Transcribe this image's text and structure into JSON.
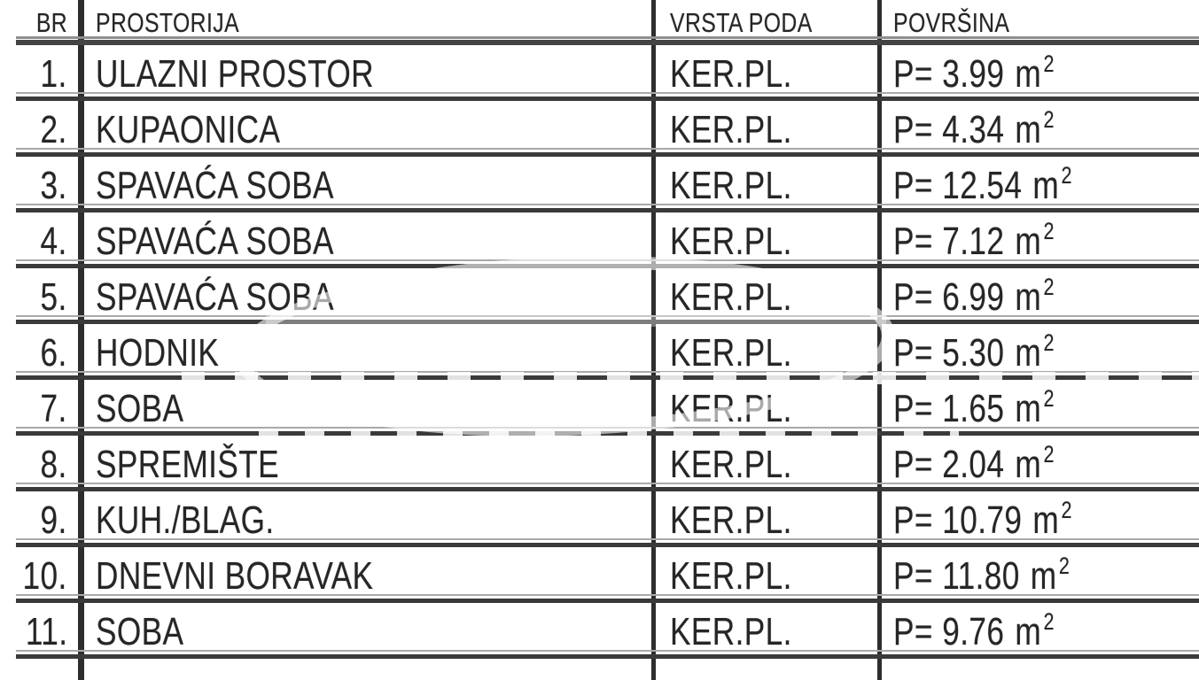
{
  "headers": {
    "br": "BR",
    "room": "PROSTORIJA",
    "floor": "VRSTA PODA",
    "area": "POVRŠINA"
  },
  "fmt": {
    "area_prefix": "P=",
    "area_unit": "m",
    "area_exponent": "2"
  },
  "rows": [
    {
      "no": "1.",
      "room": "ULAZNI PROSTOR",
      "floor": "KER.PL.",
      "area": "3.99"
    },
    {
      "no": "2.",
      "room": "KUPAONICA",
      "floor": "KER.PL.",
      "area": "4.34"
    },
    {
      "no": "3.",
      "room": "SPAVAĆA SOBA",
      "floor": "KER.PL.",
      "area": "12.54"
    },
    {
      "no": "4.",
      "room": "SPAVAĆA SOBA",
      "floor": "KER.PL.",
      "area": "7.12"
    },
    {
      "no": "5.",
      "room": "SPAVAĆA SOBA",
      "floor": "KER.PL.",
      "area": "6.99"
    },
    {
      "no": "6.",
      "room": "HODNIK",
      "floor": "KER.PL.",
      "area": "5.30"
    },
    {
      "no": "7.",
      "room": "SOBA",
      "floor": "KER.PL.",
      "area": "1.65"
    },
    {
      "no": "8.",
      "room": "SPREMIŠTE",
      "floor": "KER.PL.",
      "area": "2.04"
    },
    {
      "no": "9.",
      "room": "KUH./BLAG.",
      "floor": "KER.PL.",
      "area": "10.79"
    },
    {
      "no": "10.",
      "room": "DNEVNI BORAVAK",
      "floor": "KER.PL.",
      "area": "11.80"
    },
    {
      "no": "11.",
      "room": "SOBA",
      "floor": "KER.PL.",
      "area": "9.76"
    }
  ]
}
